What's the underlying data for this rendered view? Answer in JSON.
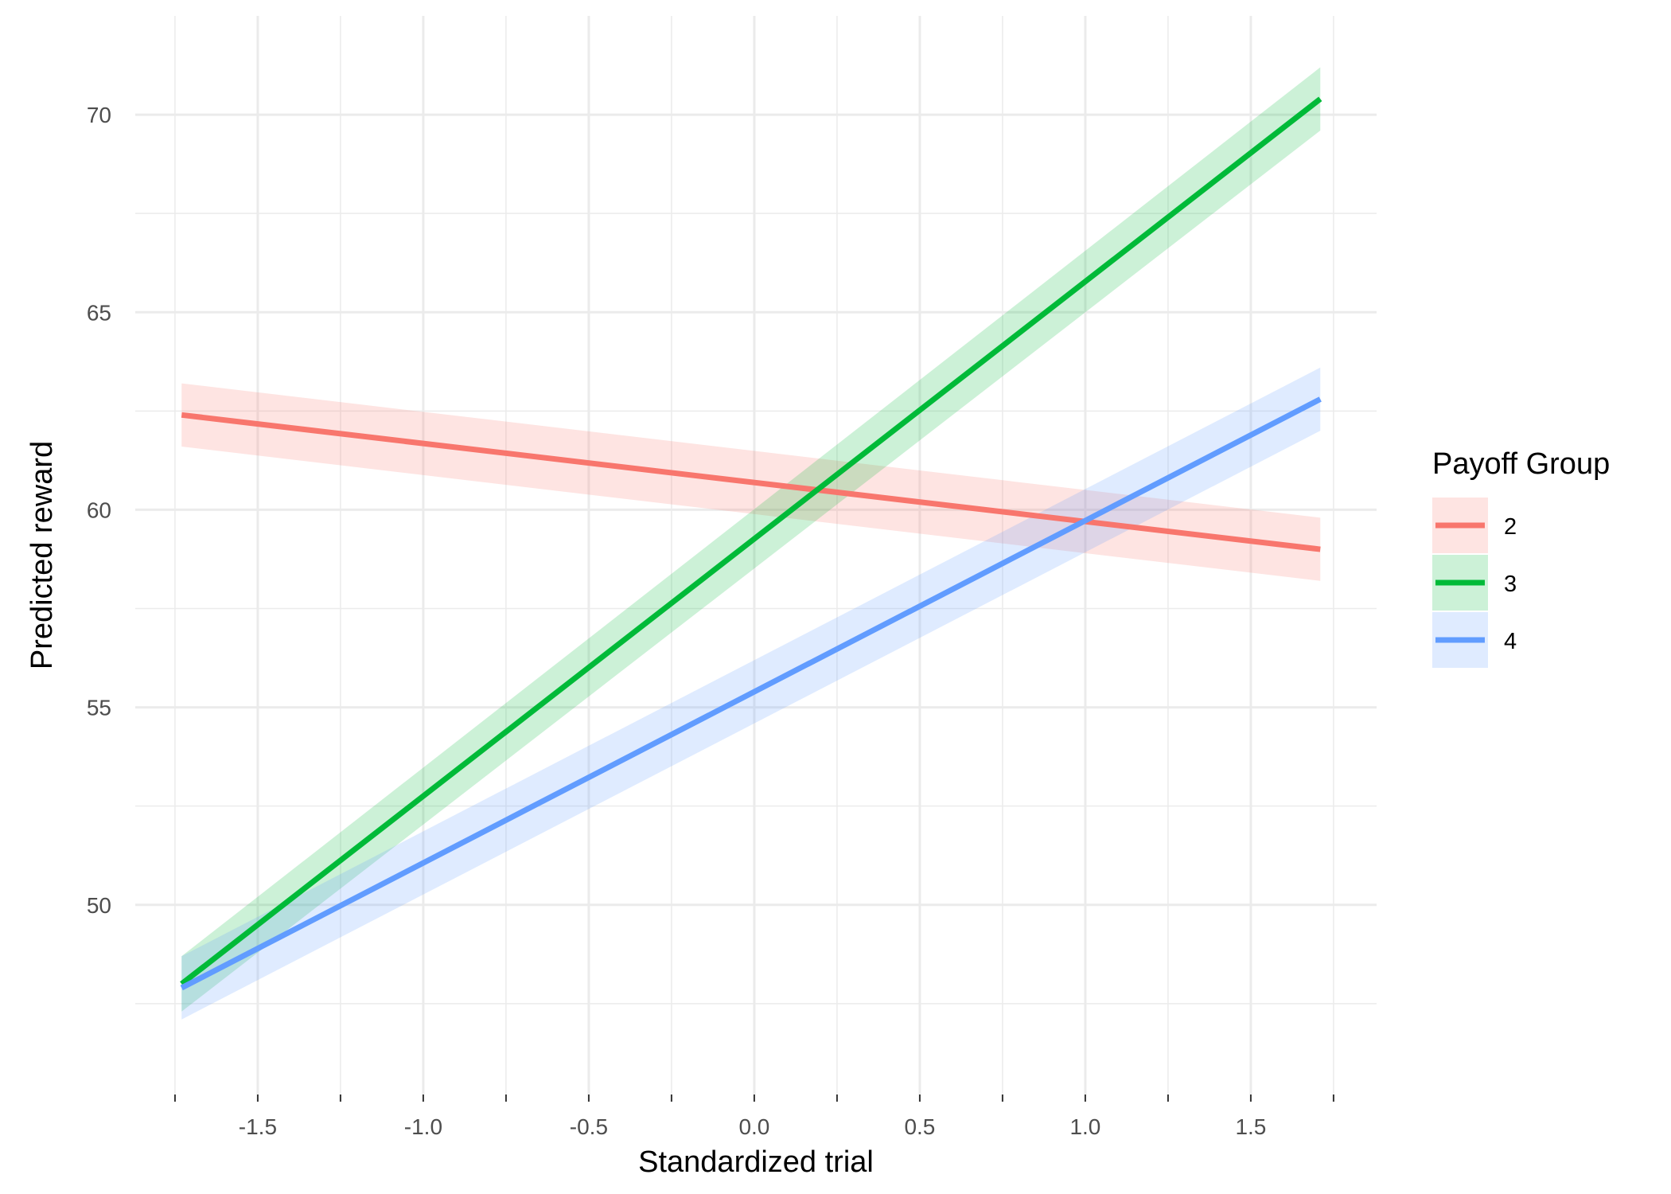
{
  "chart_data": {
    "type": "line",
    "xlabel": "Standardized trial",
    "ylabel": "Predicted reward",
    "xlim": [
      -1.87,
      1.88
    ],
    "ylim": [
      45.2,
      72.5
    ],
    "x_ticks": [
      -1.5,
      -1.0,
      -0.5,
      0.0,
      0.5,
      1.0,
      1.5
    ],
    "x_tick_labels": [
      "-1.5",
      "-1.0",
      "-0.5",
      "0.0",
      "0.5",
      "1.0",
      "1.5"
    ],
    "x_minor_ticks": [
      -1.75,
      -1.25,
      -0.75,
      -0.25,
      0.25,
      0.75,
      1.25,
      1.75
    ],
    "y_ticks": [
      50,
      55,
      60,
      65,
      70
    ],
    "y_tick_labels": [
      "50",
      "55",
      "60",
      "65",
      "70"
    ],
    "y_minor_ticks": [
      47.5,
      52.5,
      57.5,
      62.5,
      67.5
    ],
    "grid": true,
    "legend": {
      "title": "Payoff Group",
      "position": "right"
    },
    "series": [
      {
        "name": "2",
        "color": "#F8766D",
        "x": [
          -1.73,
          1.71
        ],
        "y": [
          62.4,
          59.0
        ],
        "lower": [
          61.6,
          58.2
        ],
        "upper": [
          63.2,
          59.8
        ]
      },
      {
        "name": "3",
        "color": "#00BA38",
        "x": [
          -1.73,
          1.71
        ],
        "y": [
          48.0,
          70.4
        ],
        "lower": [
          47.3,
          69.6
        ],
        "upper": [
          48.7,
          71.2
        ]
      },
      {
        "name": "4",
        "color": "#619CFF",
        "x": [
          -1.73,
          1.71
        ],
        "y": [
          47.9,
          62.8
        ],
        "lower": [
          47.1,
          62.0
        ],
        "upper": [
          48.7,
          63.6
        ]
      }
    ]
  }
}
